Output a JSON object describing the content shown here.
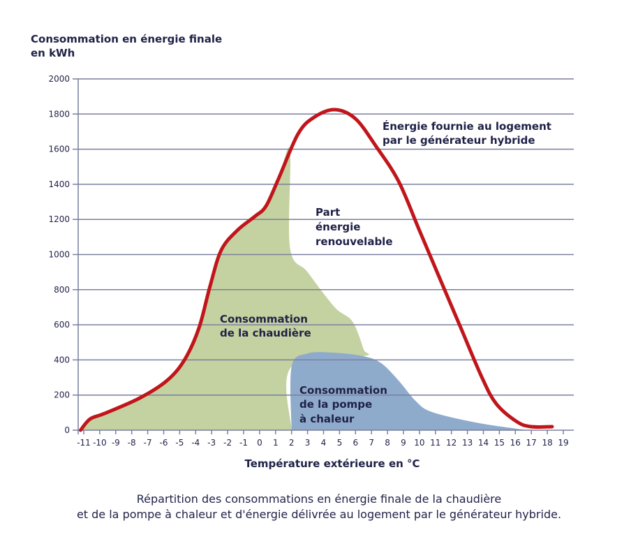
{
  "chart_data": {
    "type": "area",
    "ylabel_lines": [
      "Consommation en énergie finale",
      "en kWh"
    ],
    "xlabel": "Température extérieure en °C",
    "caption_lines": [
      "Répartition des consommations en énergie finale de la chaudière",
      "et de la pompe à chaleur et d'énergie délivrée au logement par le générateur hybride."
    ],
    "ylim": [
      0,
      2000
    ],
    "yticks": [
      0,
      200,
      400,
      600,
      800,
      1000,
      1200,
      1400,
      1600,
      1800,
      2000
    ],
    "xlim": [
      -11,
      19
    ],
    "xticks": [
      -11,
      -10,
      -9,
      -8,
      -7,
      -6,
      -5,
      -4,
      -3,
      -2,
      -1,
      0,
      1,
      2,
      3,
      4,
      5,
      6,
      7,
      8,
      9,
      10,
      11,
      12,
      13,
      14,
      15,
      16,
      17,
      18,
      19
    ],
    "grid": true,
    "colors": {
      "line": "#c0161b",
      "boiler": "#c4d1a0",
      "heat_pump": "#8fabcb",
      "grid": "#7a7f9e",
      "text": "#1f2147"
    },
    "annotations": {
      "line": [
        "Énergie fournie au logement",
        "par le générateur hybride"
      ],
      "renewable": [
        "Part",
        "énergie",
        "renouvelable"
      ],
      "boiler": [
        "Consommation",
        "de la chaudière"
      ],
      "heat_pump": [
        "Consommation",
        "de la pompe",
        "à chaleur"
      ]
    },
    "series": [
      {
        "id": "energy_delivered",
        "kind": "line",
        "points": [
          [
            -11.2,
            0
          ],
          [
            -10.6,
            64
          ],
          [
            -9.7,
            95
          ],
          [
            -7.5,
            183
          ],
          [
            -5.8,
            282
          ],
          [
            -4.7,
            400
          ],
          [
            -3.8,
            580
          ],
          [
            -3.1,
            820
          ],
          [
            -2.4,
            1025
          ],
          [
            -1.4,
            1137
          ],
          [
            -0.3,
            1217
          ],
          [
            0.4,
            1276
          ],
          [
            1.2,
            1435
          ],
          [
            2.4,
            1686
          ],
          [
            3.4,
            1781
          ],
          [
            4.7,
            1825
          ],
          [
            6.0,
            1773
          ],
          [
            7.3,
            1614
          ],
          [
            8.7,
            1416
          ],
          [
            10.0,
            1137
          ],
          [
            11.3,
            858
          ],
          [
            12.6,
            580
          ],
          [
            13.9,
            302
          ],
          [
            14.8,
            151
          ],
          [
            16.1,
            48
          ],
          [
            17.0,
            20
          ],
          [
            18.3,
            20
          ]
        ]
      },
      {
        "id": "boiler",
        "kind": "area",
        "points": [
          [
            -11.2,
            0
          ],
          [
            -10.6,
            64
          ],
          [
            -9.7,
            95
          ],
          [
            -7.5,
            183
          ],
          [
            -5.8,
            282
          ],
          [
            -4.7,
            400
          ],
          [
            -3.8,
            580
          ],
          [
            -3.1,
            820
          ],
          [
            -2.4,
            1025
          ],
          [
            -1.4,
            1137
          ],
          [
            -0.3,
            1217
          ],
          [
            0.4,
            1276
          ],
          [
            1.2,
            1435
          ],
          [
            1.9,
            1594
          ],
          [
            1.9,
            1040
          ],
          [
            3.0,
            900
          ],
          [
            4.7,
            700
          ],
          [
            5.8,
            620
          ],
          [
            6.5,
            461
          ],
          [
            6.5,
            421
          ],
          [
            2.0,
            362
          ],
          [
            2.0,
            0
          ]
        ]
      },
      {
        "id": "heat_pump",
        "kind": "area",
        "points": [
          [
            2.0,
            0
          ],
          [
            2.0,
            362
          ],
          [
            3.0,
            437
          ],
          [
            4.7,
            441
          ],
          [
            6.5,
            421
          ],
          [
            7.6,
            382
          ],
          [
            8.7,
            282
          ],
          [
            9.8,
            163
          ],
          [
            10.8,
            103
          ],
          [
            13.5,
            44
          ],
          [
            16.1,
            8
          ],
          [
            17.0,
            0
          ]
        ]
      }
    ]
  }
}
